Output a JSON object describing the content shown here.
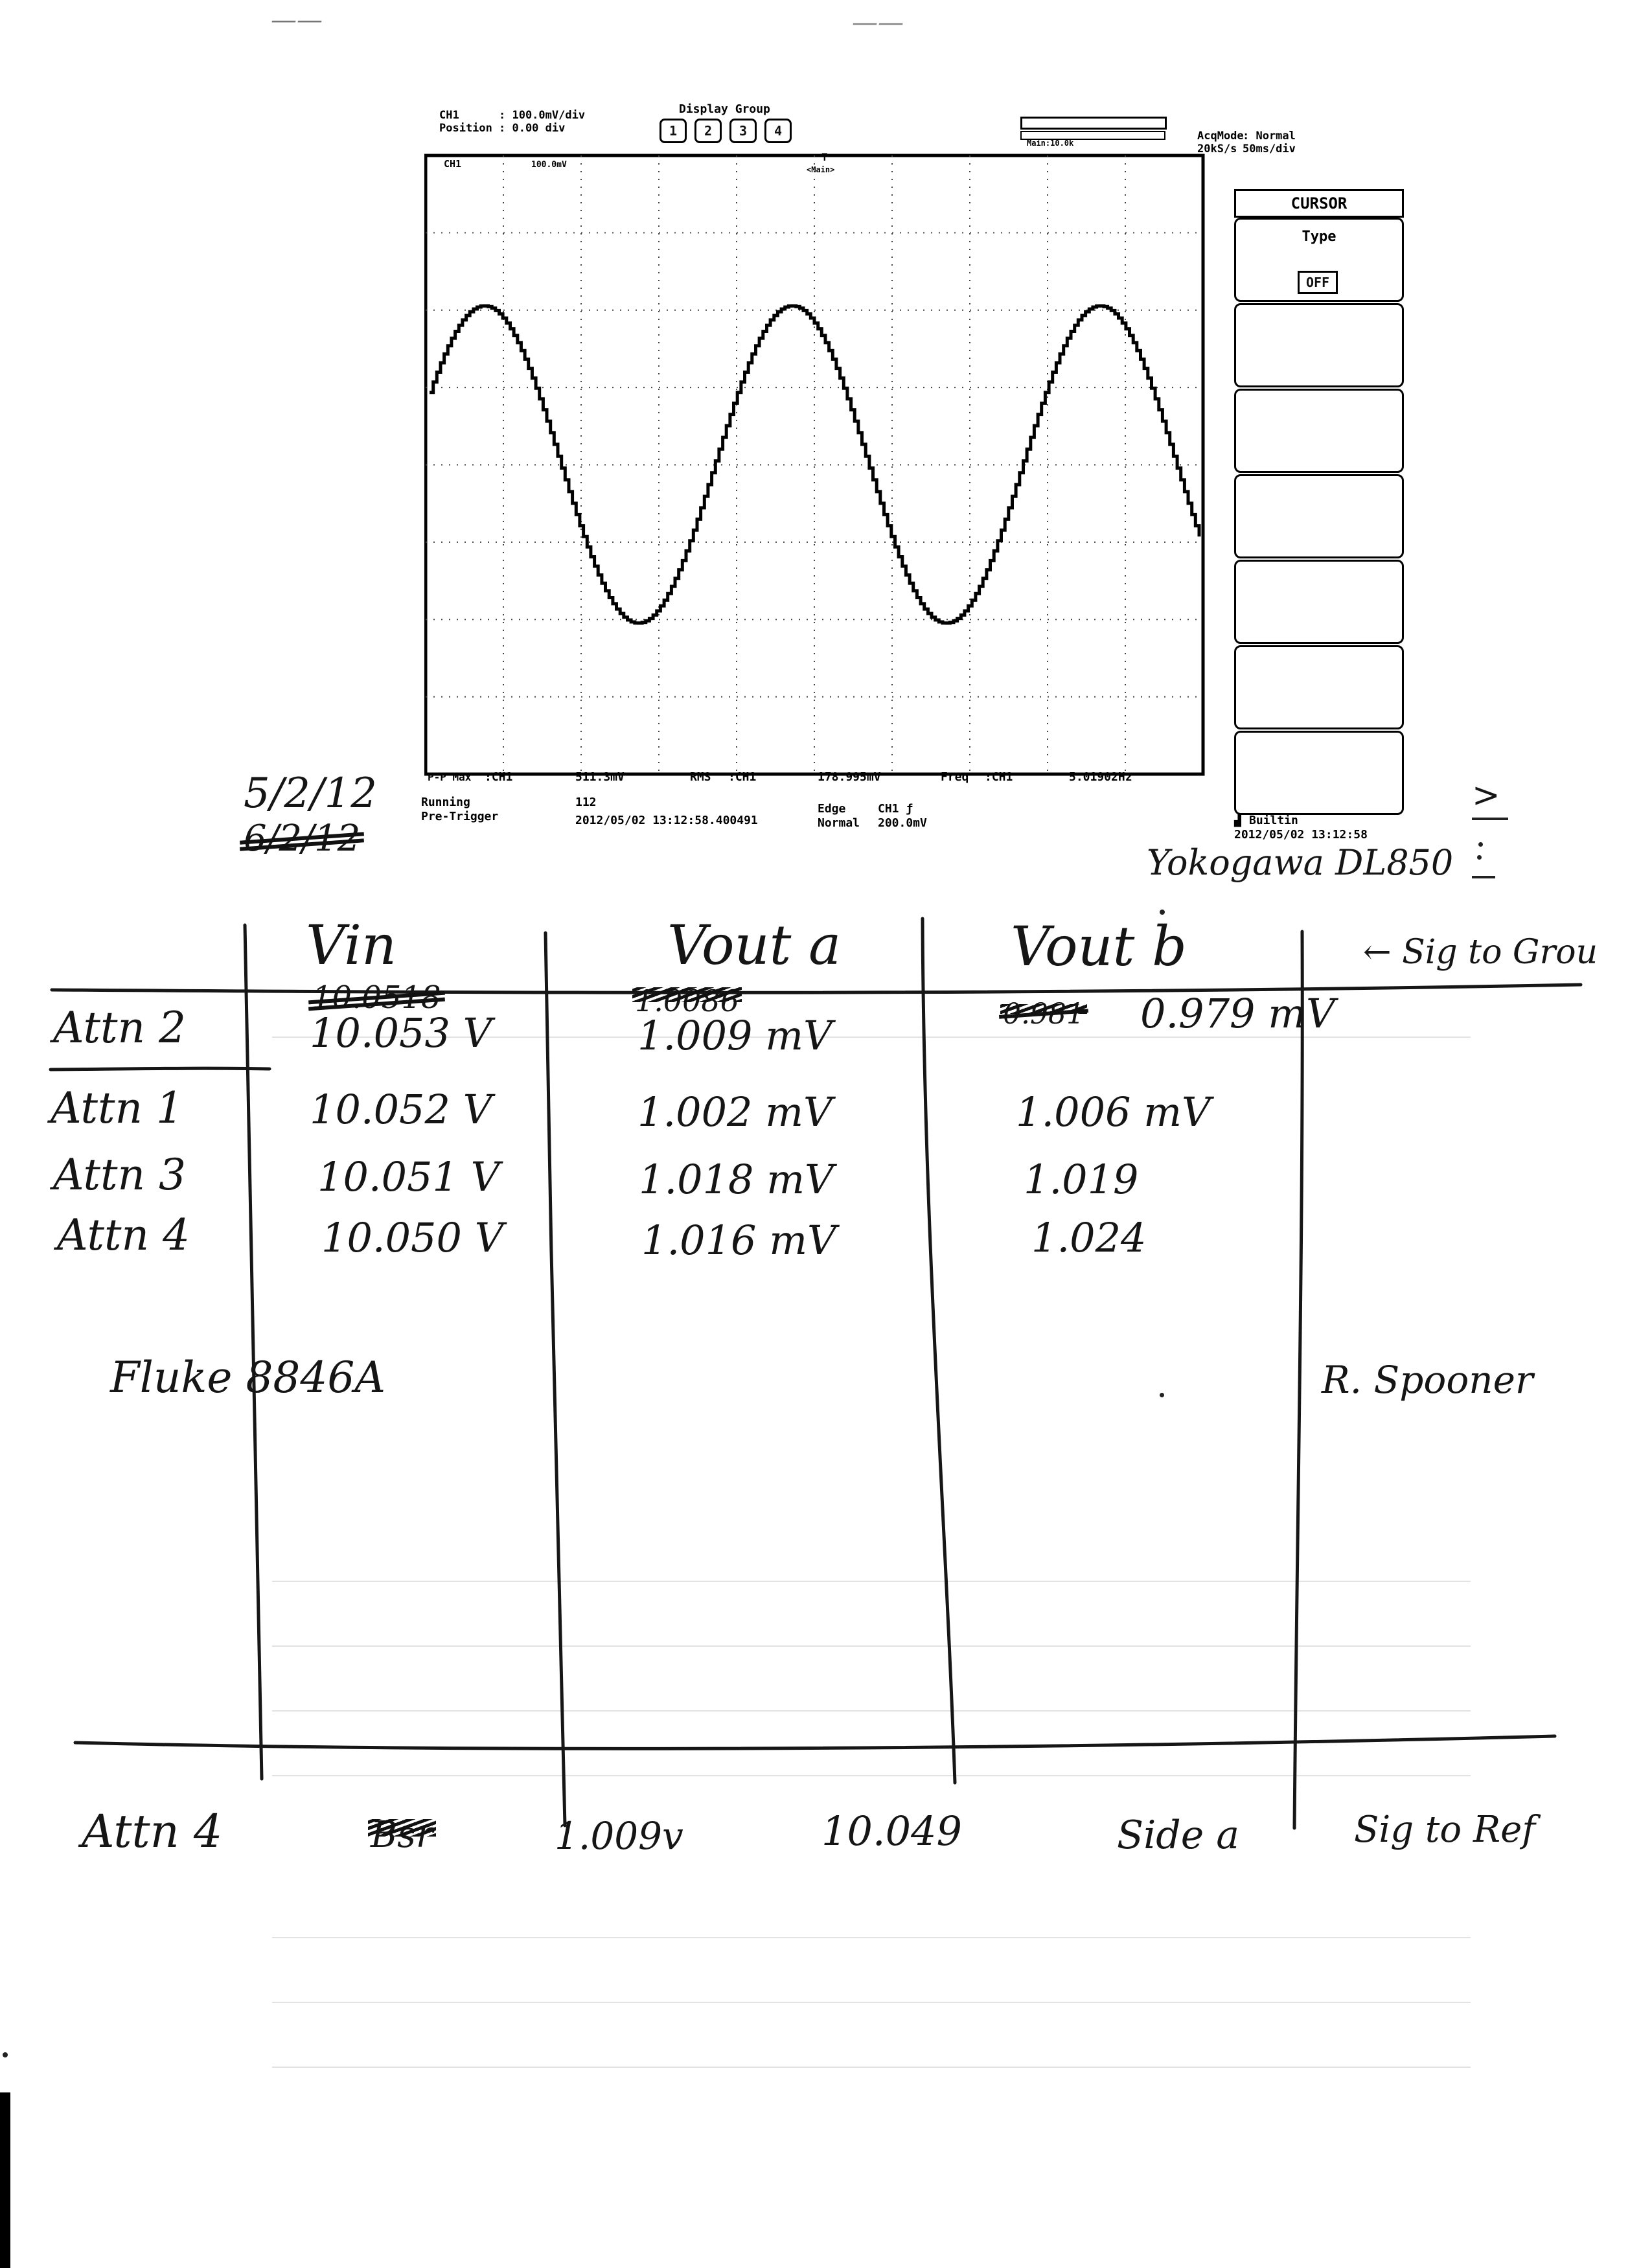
{
  "top_marks": {
    "mark_1": "——",
    "mark_2": "——"
  },
  "scope_header": {
    "ch_label": "CH1",
    "ch_value": ": 100.0mV/div",
    "position_label": "Position",
    "position_value": ": 0.00 div",
    "display_group_title": "Display Group",
    "display_groups": [
      "1",
      "2",
      "3",
      "4"
    ],
    "main_label": "Main:10.0k",
    "acq_mode_label": "AcqMode",
    "acq_mode_value": ": Normal",
    "sample_rate": "20kS/s",
    "time_div": "50ms/div"
  },
  "screen": {
    "ch_tag": "CH1",
    "ch_scale": "100.0mV",
    "trigger_marker": "T",
    "trigger_label": "<Main>",
    "level_marker": "T",
    "ground_marker": "1"
  },
  "waveform": {
    "cycles_shown": 2.5,
    "frequency_hz": 5.01902,
    "peak_to_peak_mv": 511.3,
    "rms_mv": 178.995
  },
  "cursor_panel": {
    "title": "CURSOR",
    "type_label": "Type",
    "type_value": "OFF"
  },
  "measurements": {
    "pp_label": "P-P Max",
    "pp_channel": ":CH1",
    "pp_value": "511.3mV",
    "rms_label": "RMS",
    "rms_channel": ":CH1",
    "rms_value": "178.995mV",
    "freq_label": "Freq",
    "freq_channel": ":CH1",
    "freq_value": "5.01902Hz"
  },
  "status": {
    "state": "Running",
    "mode": "Pre-Trigger",
    "count": "112",
    "timestamp": "2012/05/02 13:12:58.400491",
    "trigger_type": "Edge",
    "trigger_mode": "Normal",
    "trigger_source": "CH1 ƒ",
    "trigger_level": "200.0mV",
    "storage": "Builtin",
    "storage_time": "2012/05/02 13:12:58"
  },
  "annotations": {
    "date": "5/2/12",
    "date_struck": "6/2/12",
    "instrument": "Yokogawa DL850",
    "side_mark": ">",
    "sig_to_ground": "← Sig to Grou",
    "multimeter": "Fluke 8846A",
    "author": "R. Spooner"
  },
  "table": {
    "columns": [
      "Vin",
      "Vout a",
      "Vout b"
    ],
    "rows": [
      {
        "label": "Attn 2",
        "vin_struck": "10.0518",
        "vin": "10.053 V",
        "vout_a_struck": "1.0086",
        "vout_a": "1.009 mV",
        "vout_b_struck": "0.981",
        "vout_b": "0.979 mV"
      },
      {
        "label": "Attn 1",
        "vin": "10.052 V",
        "vout_a": "1.002 mV",
        "vout_b": "1.006 mV"
      },
      {
        "label": "Attn 3",
        "vin": "10.051 V",
        "vout_a": "1.018 mV",
        "vout_b": "1.019"
      },
      {
        "label": "Attn 4",
        "vin": "10.050 V",
        "vout_a": "1.016 mV",
        "vout_b": "1.024"
      }
    ]
  },
  "bottom_row": {
    "label": "Attn 4",
    "struck": "Bsr",
    "v1": "1.009v",
    "v2": "10.049",
    "side": "Side a",
    "note": "Sig to Ref"
  }
}
